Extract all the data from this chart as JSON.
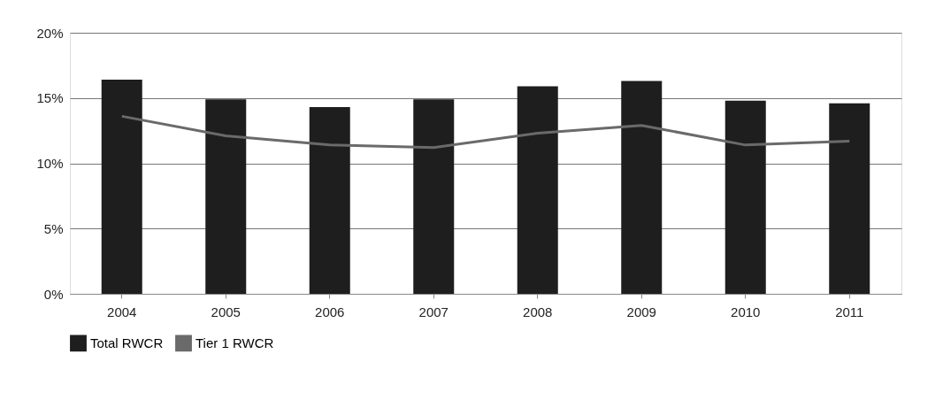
{
  "chart_data": {
    "type": "bar",
    "categories": [
      "2004",
      "2005",
      "2006",
      "2007",
      "2008",
      "2009",
      "2010",
      "2011"
    ],
    "series": [
      {
        "name": "Total RWCR",
        "color": "#1e1e1e",
        "values": [
          16.4,
          14.9,
          14.3,
          14.9,
          15.9,
          16.3,
          14.8,
          14.6
        ]
      },
      {
        "name": "Tier 1 RWCR",
        "type": "line",
        "color": "#6a6a6a",
        "values": [
          13.6,
          12.1,
          11.4,
          11.2,
          12.3,
          12.9,
          11.4,
          11.7
        ]
      }
    ],
    "ylim": [
      0,
      20
    ],
    "yticks": [
      {
        "value": 0,
        "label": "0%"
      },
      {
        "value": 5,
        "label": "5%"
      },
      {
        "value": 10,
        "label": "10%"
      },
      {
        "value": 15,
        "label": "15%"
      },
      {
        "value": 20,
        "label": "20%"
      }
    ],
    "grid": "y",
    "legend": "bottom",
    "marker": "none",
    "line_style": "solid"
  }
}
